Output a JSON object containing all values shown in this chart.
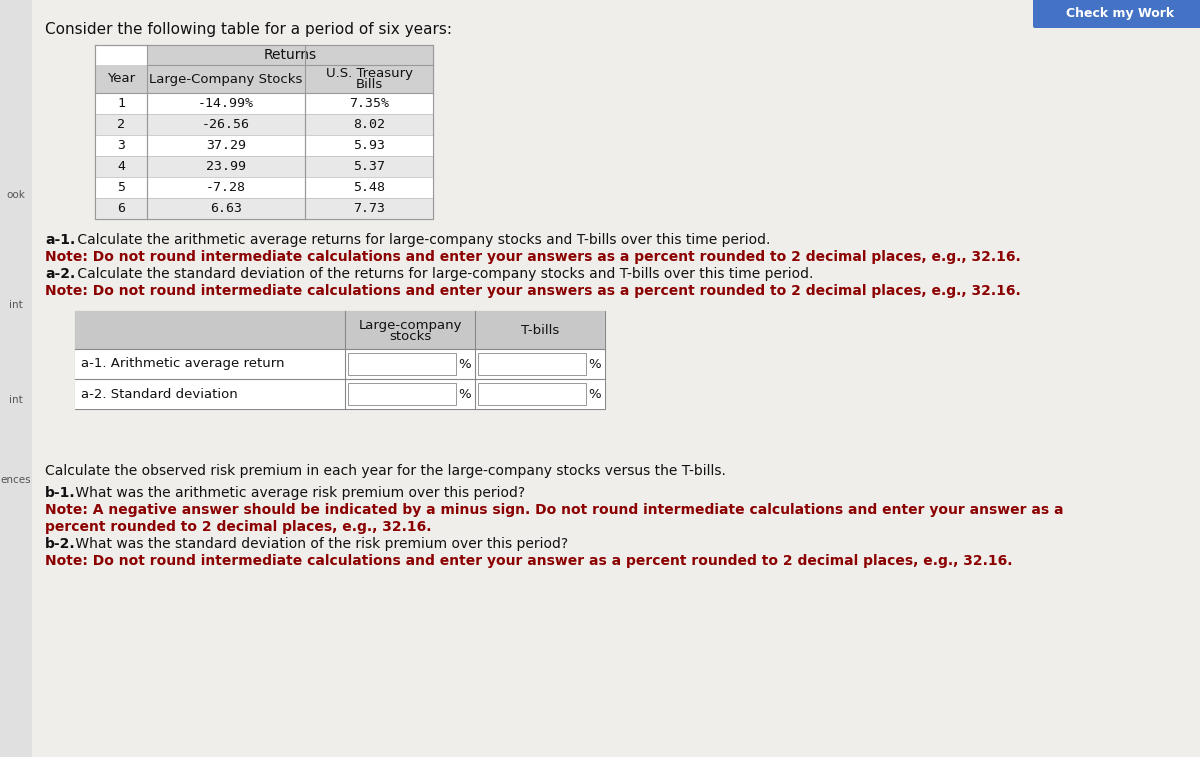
{
  "title": "Consider the following table for a period of six years:",
  "table_header_returns": "Returns",
  "table_col1": "Year",
  "table_col2": "Large-Company Stocks",
  "table_col3_line1": "U.S. Treasury",
  "table_col3_line2": "Bills",
  "years": [
    "1",
    "2",
    "3",
    "4",
    "5",
    "6"
  ],
  "large_company": [
    "-14.99%",
    "-26.56",
    "37.29",
    "23.99",
    "-7.28",
    "6.63"
  ],
  "tbills": [
    "7.35%",
    "8.02",
    "5.93",
    "5.37",
    "5.48",
    "7.73"
  ],
  "a1_label": "a-1.",
  "a1_text": " Calculate the arithmetic average returns for large-company stocks and T-bills over this time period.",
  "a1_note": "Note: Do not round intermediate calculations and enter your answers as a percent rounded to 2 decimal places, e.g., 32.16.",
  "a2_label": "a-2.",
  "a2_text": " Calculate the standard deviation of the returns for large-company stocks and T-bills over this time period.",
  "a2_note": "Note: Do not round intermediate calculations and enter your answers as a percent rounded to 2 decimal places, e.g., 32.16.",
  "answer_col2_hdr_line1": "Large-company",
  "answer_col2_hdr_line2": "stocks",
  "answer_col3_hdr": "T-bills",
  "answer_row1": "a-1. Arithmetic average return",
  "answer_row2": "a-2. Standard deviation",
  "percent_symbol": "%",
  "bottom_intro": "Calculate the observed risk premium in each year for the large-company stocks versus the T-bills.",
  "b1_label": "b-1.",
  "b1_text": " What was the arithmetic average risk premium over this period?",
  "b1_note_line1": "Note: A negative answer should be indicated by a minus sign. Do not round intermediate calculations and enter your answer as a",
  "b1_note_line2": "percent rounded to 2 decimal places, e.g., 32.16.",
  "b2_label": "b-2.",
  "b2_text": " What was the standard deviation of the risk premium over this period?",
  "b2_note": "Note: Do not round intermediate calculations and enter your answer as a percent rounded to 2 decimal places, e.g., 32.16.",
  "check_btn_text": "Check my Work",
  "check_btn_color": "#4472c4",
  "bg_color": "#dcdcdc",
  "page_bg": "#f0eeeb",
  "table_header_bg": "#d0d0d0",
  "answer_header_bg": "#c8c8c8",
  "bold_note_color": "#8b0000",
  "sidebar_bg": "#e0e0e0",
  "row_alt_bg": "#e8e8e8",
  "row_white_bg": "#ffffff"
}
